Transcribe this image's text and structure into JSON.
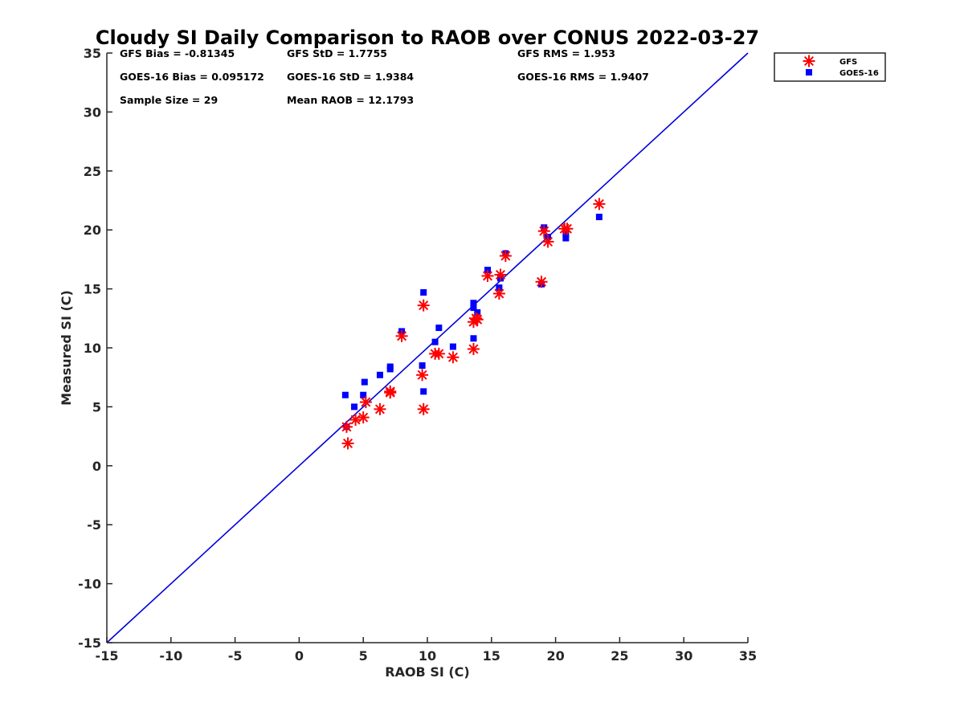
{
  "chart_data": {
    "type": "scatter",
    "title": "Cloudy SI Daily Comparison to RAOB over CONUS 2022-03-27",
    "xlabel": "RAOB SI (C)",
    "ylabel": "Measured SI (C)",
    "xlim": [
      -15,
      35
    ],
    "ylim": [
      -15,
      35
    ],
    "xticks": [
      -15,
      -10,
      -5,
      0,
      5,
      10,
      15,
      20,
      25,
      30,
      35
    ],
    "yticks": [
      -15,
      -10,
      -5,
      0,
      5,
      10,
      15,
      20,
      25,
      30,
      35
    ],
    "grid": false,
    "legend_position": "top-right",
    "reference_line": {
      "x": [
        -15,
        35
      ],
      "y": [
        -15,
        35
      ],
      "color": "#0000dd"
    },
    "stats": [
      "GFS Bias = -0.81345",
      "GFS StD = 1.7755",
      "GFS RMS = 1.953",
      "GOES-16 Bias = 0.095172",
      "GOES-16 StD = 1.9384",
      "GOES-16 RMS = 1.9407",
      "Sample Size = 29",
      "Mean RAOB = 12.1793"
    ],
    "series": [
      {
        "name": "GFS",
        "marker": "asterisk",
        "color": "#ff0000",
        "points": [
          [
            3.7,
            3.3
          ],
          [
            3.8,
            1.9
          ],
          [
            4.4,
            3.9
          ],
          [
            5.0,
            4.1
          ],
          [
            5.2,
            5.4
          ],
          [
            6.3,
            4.8
          ],
          [
            7.1,
            6.2
          ],
          [
            7.1,
            6.3
          ],
          [
            8.0,
            11.0
          ],
          [
            9.6,
            7.7
          ],
          [
            9.7,
            13.6
          ],
          [
            9.7,
            4.8
          ],
          [
            10.6,
            9.5
          ],
          [
            10.9,
            9.5
          ],
          [
            12.0,
            9.2
          ],
          [
            13.6,
            12.2
          ],
          [
            13.6,
            9.9
          ],
          [
            13.8,
            12.5
          ],
          [
            13.9,
            12.4
          ],
          [
            14.7,
            16.1
          ],
          [
            15.6,
            14.6
          ],
          [
            15.7,
            16.2
          ],
          [
            16.1,
            17.8
          ],
          [
            18.9,
            15.6
          ],
          [
            19.1,
            19.9
          ],
          [
            19.4,
            19.0
          ],
          [
            20.7,
            20.1
          ],
          [
            20.9,
            20.1
          ],
          [
            23.4,
            22.2
          ]
        ]
      },
      {
        "name": "GOES-16",
        "marker": "square",
        "color": "#0000ff",
        "points": [
          [
            3.6,
            6.0
          ],
          [
            3.7,
            3.3
          ],
          [
            4.3,
            5.0
          ],
          [
            5.0,
            6.0
          ],
          [
            5.1,
            7.1
          ],
          [
            6.3,
            7.7
          ],
          [
            7.1,
            8.2
          ],
          [
            7.1,
            8.4
          ],
          [
            8.0,
            11.4
          ],
          [
            9.6,
            8.5
          ],
          [
            9.7,
            14.7
          ],
          [
            9.7,
            6.3
          ],
          [
            10.6,
            10.5
          ],
          [
            10.9,
            11.7
          ],
          [
            12.0,
            10.1
          ],
          [
            13.6,
            13.8
          ],
          [
            13.6,
            10.8
          ],
          [
            13.6,
            13.4
          ],
          [
            13.9,
            13.0
          ],
          [
            14.7,
            16.6
          ],
          [
            15.6,
            15.1
          ],
          [
            15.7,
            15.9
          ],
          [
            16.1,
            18.0
          ],
          [
            18.9,
            15.4
          ],
          [
            19.1,
            20.2
          ],
          [
            19.4,
            19.4
          ],
          [
            20.8,
            19.3
          ],
          [
            20.8,
            19.7
          ],
          [
            23.4,
            21.1
          ]
        ]
      }
    ]
  }
}
